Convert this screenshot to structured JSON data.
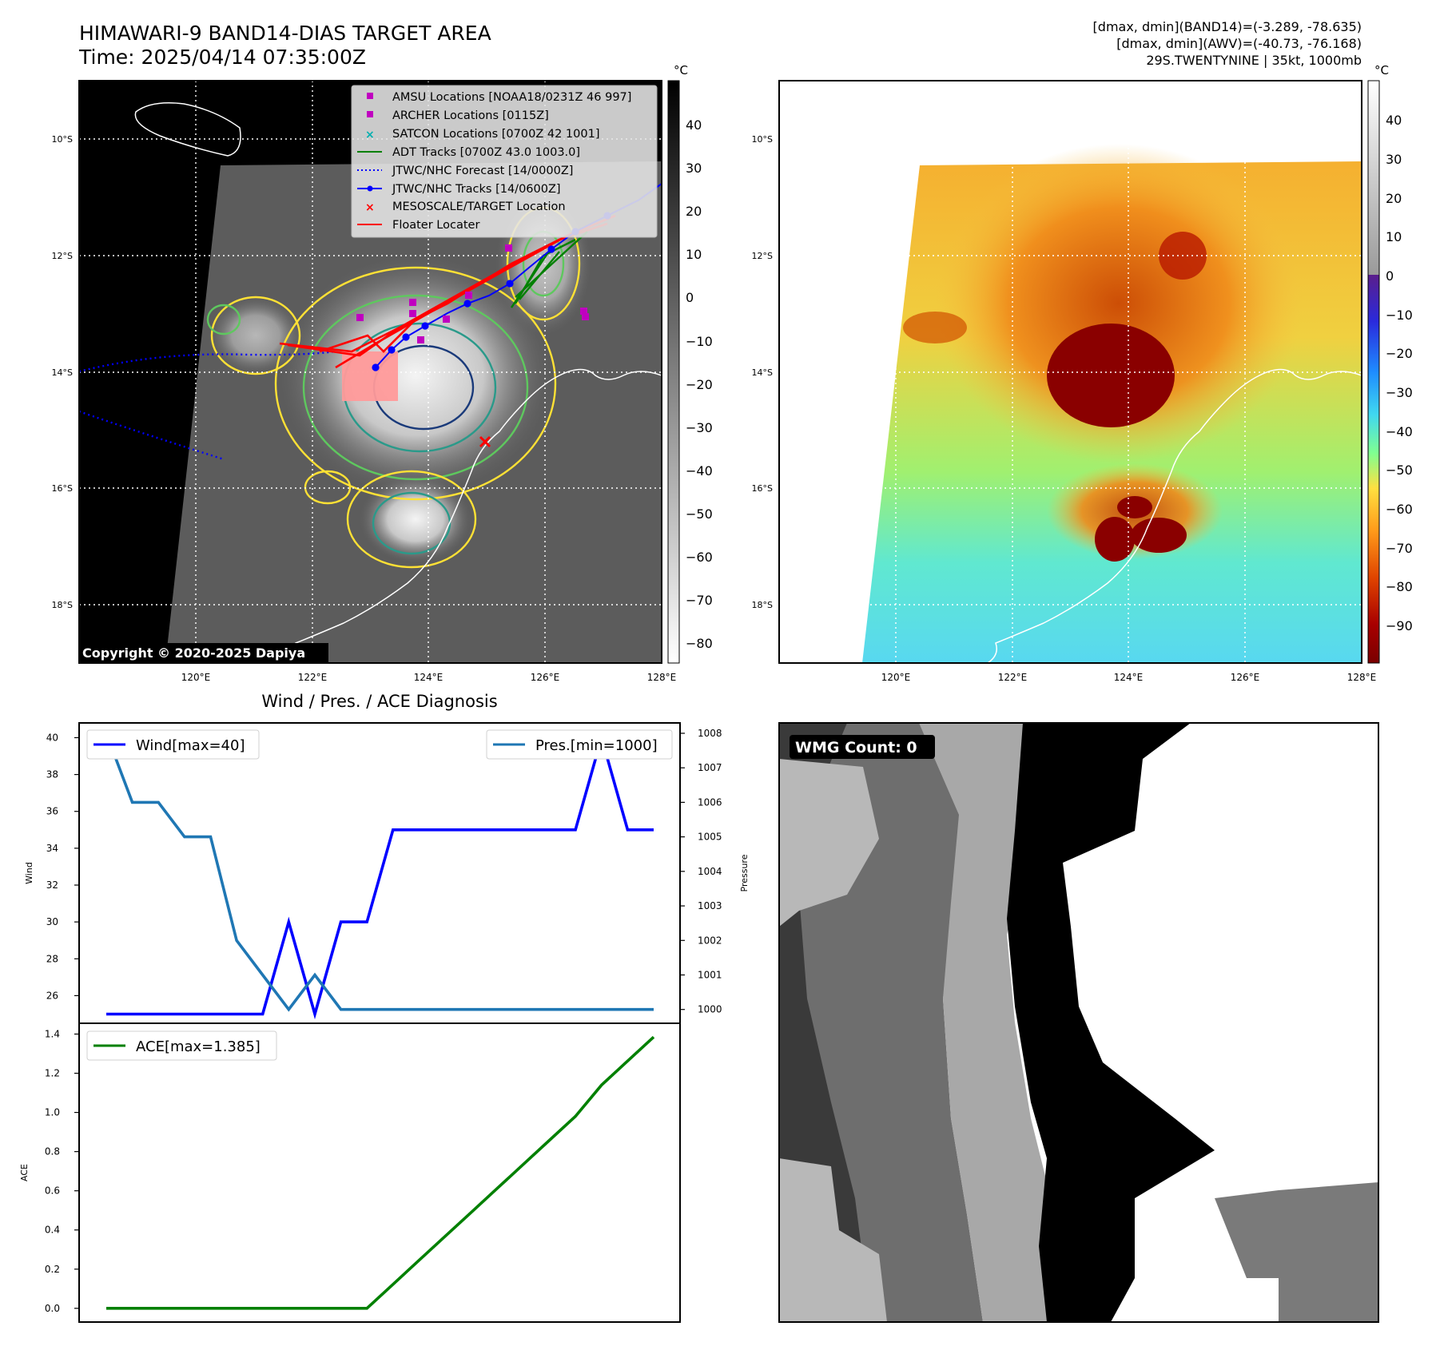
{
  "header": {
    "title_line1": "HIMAWARI-9 BAND14-DIAS TARGET AREA",
    "title_line2": "Time: 2025/04/14 07:35:00Z",
    "info_line1": "[dmax, dmin](BAND14)=(-3.289, -78.635)",
    "info_line2": "[dmax, dmin](AWV)=(-40.73, -76.168)",
    "info_line3": "29S.TWENTYNINE | 35kt, 1000mb"
  },
  "map_axes": {
    "lat_labels": [
      "10°S",
      "12°S",
      "14°S",
      "16°S",
      "18°S"
    ],
    "lon_labels": [
      "120°E",
      "122°E",
      "124°E",
      "126°E",
      "128°E"
    ]
  },
  "ir_panel": {
    "legend": [
      {
        "label": "AMSU Locations [NOAA18/0231Z 46 997]",
        "marker": "square",
        "color": "#c000c0"
      },
      {
        "label": "ARCHER Locations [0115Z]",
        "marker": "square",
        "color": "#c000c0"
      },
      {
        "label": "SATCON Locations [0700Z 42 1001]",
        "marker": "x",
        "color": "#00b0b0"
      },
      {
        "label": "ADT Tracks [0700Z 43.0 1003.0]",
        "marker": "line",
        "color": "#008000"
      },
      {
        "label": "JTWC/NHC Forecast [14/0000Z]",
        "marker": "dotted",
        "color": "#0000ff"
      },
      {
        "label": "JTWC/NHC Tracks [14/0600Z]",
        "marker": "line-dot",
        "color": "#0000ff"
      },
      {
        "label": "MESOSCALE/TARGET Location",
        "marker": "x",
        "color": "#ff0000"
      },
      {
        "label": "Floater Locater",
        "marker": "line",
        "color": "#ff0000"
      }
    ],
    "colorbar_unit": "°C",
    "colorbar_ticks": [
      "40",
      "30",
      "20",
      "10",
      "0",
      "−10",
      "−20",
      "−30",
      "−40",
      "−50",
      "−60",
      "−70",
      "−80"
    ],
    "copyright": "Copyright © 2020-2025 Dapiya"
  },
  "awv_panel": {
    "colorbar_unit": "°C",
    "colorbar_ticks": [
      "40",
      "30",
      "20",
      "10",
      "0",
      "−10",
      "−20",
      "−30",
      "−40",
      "−50",
      "−60",
      "−70",
      "−80",
      "−90"
    ]
  },
  "diagnosis": {
    "title": "Wind / Pres. / ACE Diagnosis",
    "wind_legend": "Wind[max=40]",
    "pres_legend": "Pres.[min=1000]",
    "ace_legend": "ACE[max=1.385]",
    "wind_ylabel": "Wind",
    "pres_ylabel": "Pressure",
    "ace_ylabel": "ACE"
  },
  "wmg_panel": {
    "label": "WMG Count: 0"
  },
  "chart_data": [
    {
      "type": "line",
      "title": "Wind / Pres. / ACE Diagnosis",
      "x": [
        0,
        1,
        2,
        3,
        4,
        5,
        6,
        7,
        8,
        9,
        10,
        11,
        12,
        13,
        14,
        15,
        16,
        17,
        18,
        19,
        20,
        21
      ],
      "series": [
        {
          "name": "Wind[max=40]",
          "axis": "left",
          "color": "#0000ff",
          "values": [
            25,
            25,
            25,
            25,
            25,
            25,
            25,
            30,
            25,
            30,
            30,
            35,
            35,
            35,
            35,
            35,
            35,
            35,
            35,
            40,
            35,
            35
          ]
        },
        {
          "name": "Pres.[min=1000]",
          "axis": "right",
          "color": "#1f77b4",
          "values": [
            1008,
            1006,
            1006,
            1005,
            1005,
            1002,
            1001,
            1000,
            1001,
            1000,
            1000,
            1000,
            1000,
            1000,
            1000,
            1000,
            1000,
            1000,
            1000,
            1000,
            1000,
            1000
          ]
        }
      ],
      "ylabel": "Wind",
      "ylim": [
        24.5,
        40.8
      ],
      "y2label": "Pressure",
      "y2lim": [
        999.6,
        1008.3
      ],
      "yticks": [
        26,
        28,
        30,
        32,
        34,
        36,
        38,
        40
      ],
      "y2ticks": [
        1000,
        1001,
        1002,
        1003,
        1004,
        1005,
        1006,
        1007,
        1008
      ],
      "legend": [
        "upper left",
        "upper right"
      ]
    },
    {
      "type": "line",
      "x": [
        0,
        1,
        2,
        3,
        4,
        5,
        6,
        7,
        8,
        9,
        10,
        11,
        12,
        13,
        14,
        15,
        16,
        17,
        18,
        19,
        20,
        21
      ],
      "series": [
        {
          "name": "ACE[max=1.385]",
          "color": "#008000",
          "values": [
            0,
            0,
            0,
            0,
            0,
            0,
            0,
            0,
            0,
            0,
            0,
            0.1225,
            0.245,
            0.3675,
            0.49,
            0.6125,
            0.735,
            0.8575,
            0.98,
            1.14,
            1.2625,
            1.385
          ]
        }
      ],
      "ylabel": "ACE",
      "ylim": [
        -0.07,
        1.455
      ],
      "yticks": [
        0.0,
        0.2,
        0.4,
        0.6,
        0.8,
        1.0,
        1.2,
        1.4
      ],
      "legend": "upper left"
    }
  ]
}
